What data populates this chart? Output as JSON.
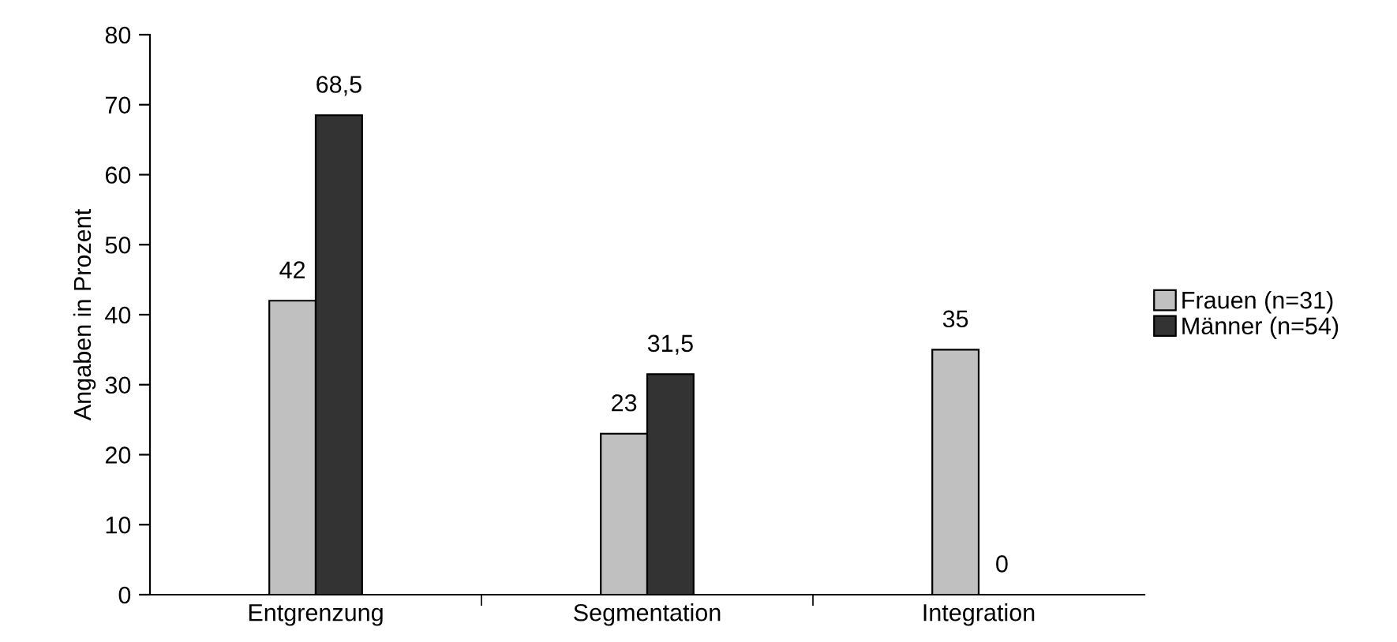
{
  "chart_data": {
    "type": "bar",
    "ylabel": "Angaben in Prozent",
    "categories": [
      "Entgrenzung",
      "Segmentation",
      "Integration"
    ],
    "series": [
      {
        "name": "Frauen (n=31)",
        "color": "#c0c0c0",
        "values": [
          42,
          23,
          35
        ],
        "value_labels": [
          "42",
          "23",
          "35"
        ]
      },
      {
        "name": "Männer (n=54)",
        "color": "#333333",
        "values": [
          68.5,
          31.5,
          0
        ],
        "value_labels": [
          "68,5",
          "31,5",
          "0"
        ]
      }
    ],
    "ylim": [
      0,
      80
    ],
    "yticks": [
      0,
      10,
      20,
      30,
      40,
      50,
      60,
      70,
      80
    ],
    "grid": false,
    "legend": "right"
  }
}
